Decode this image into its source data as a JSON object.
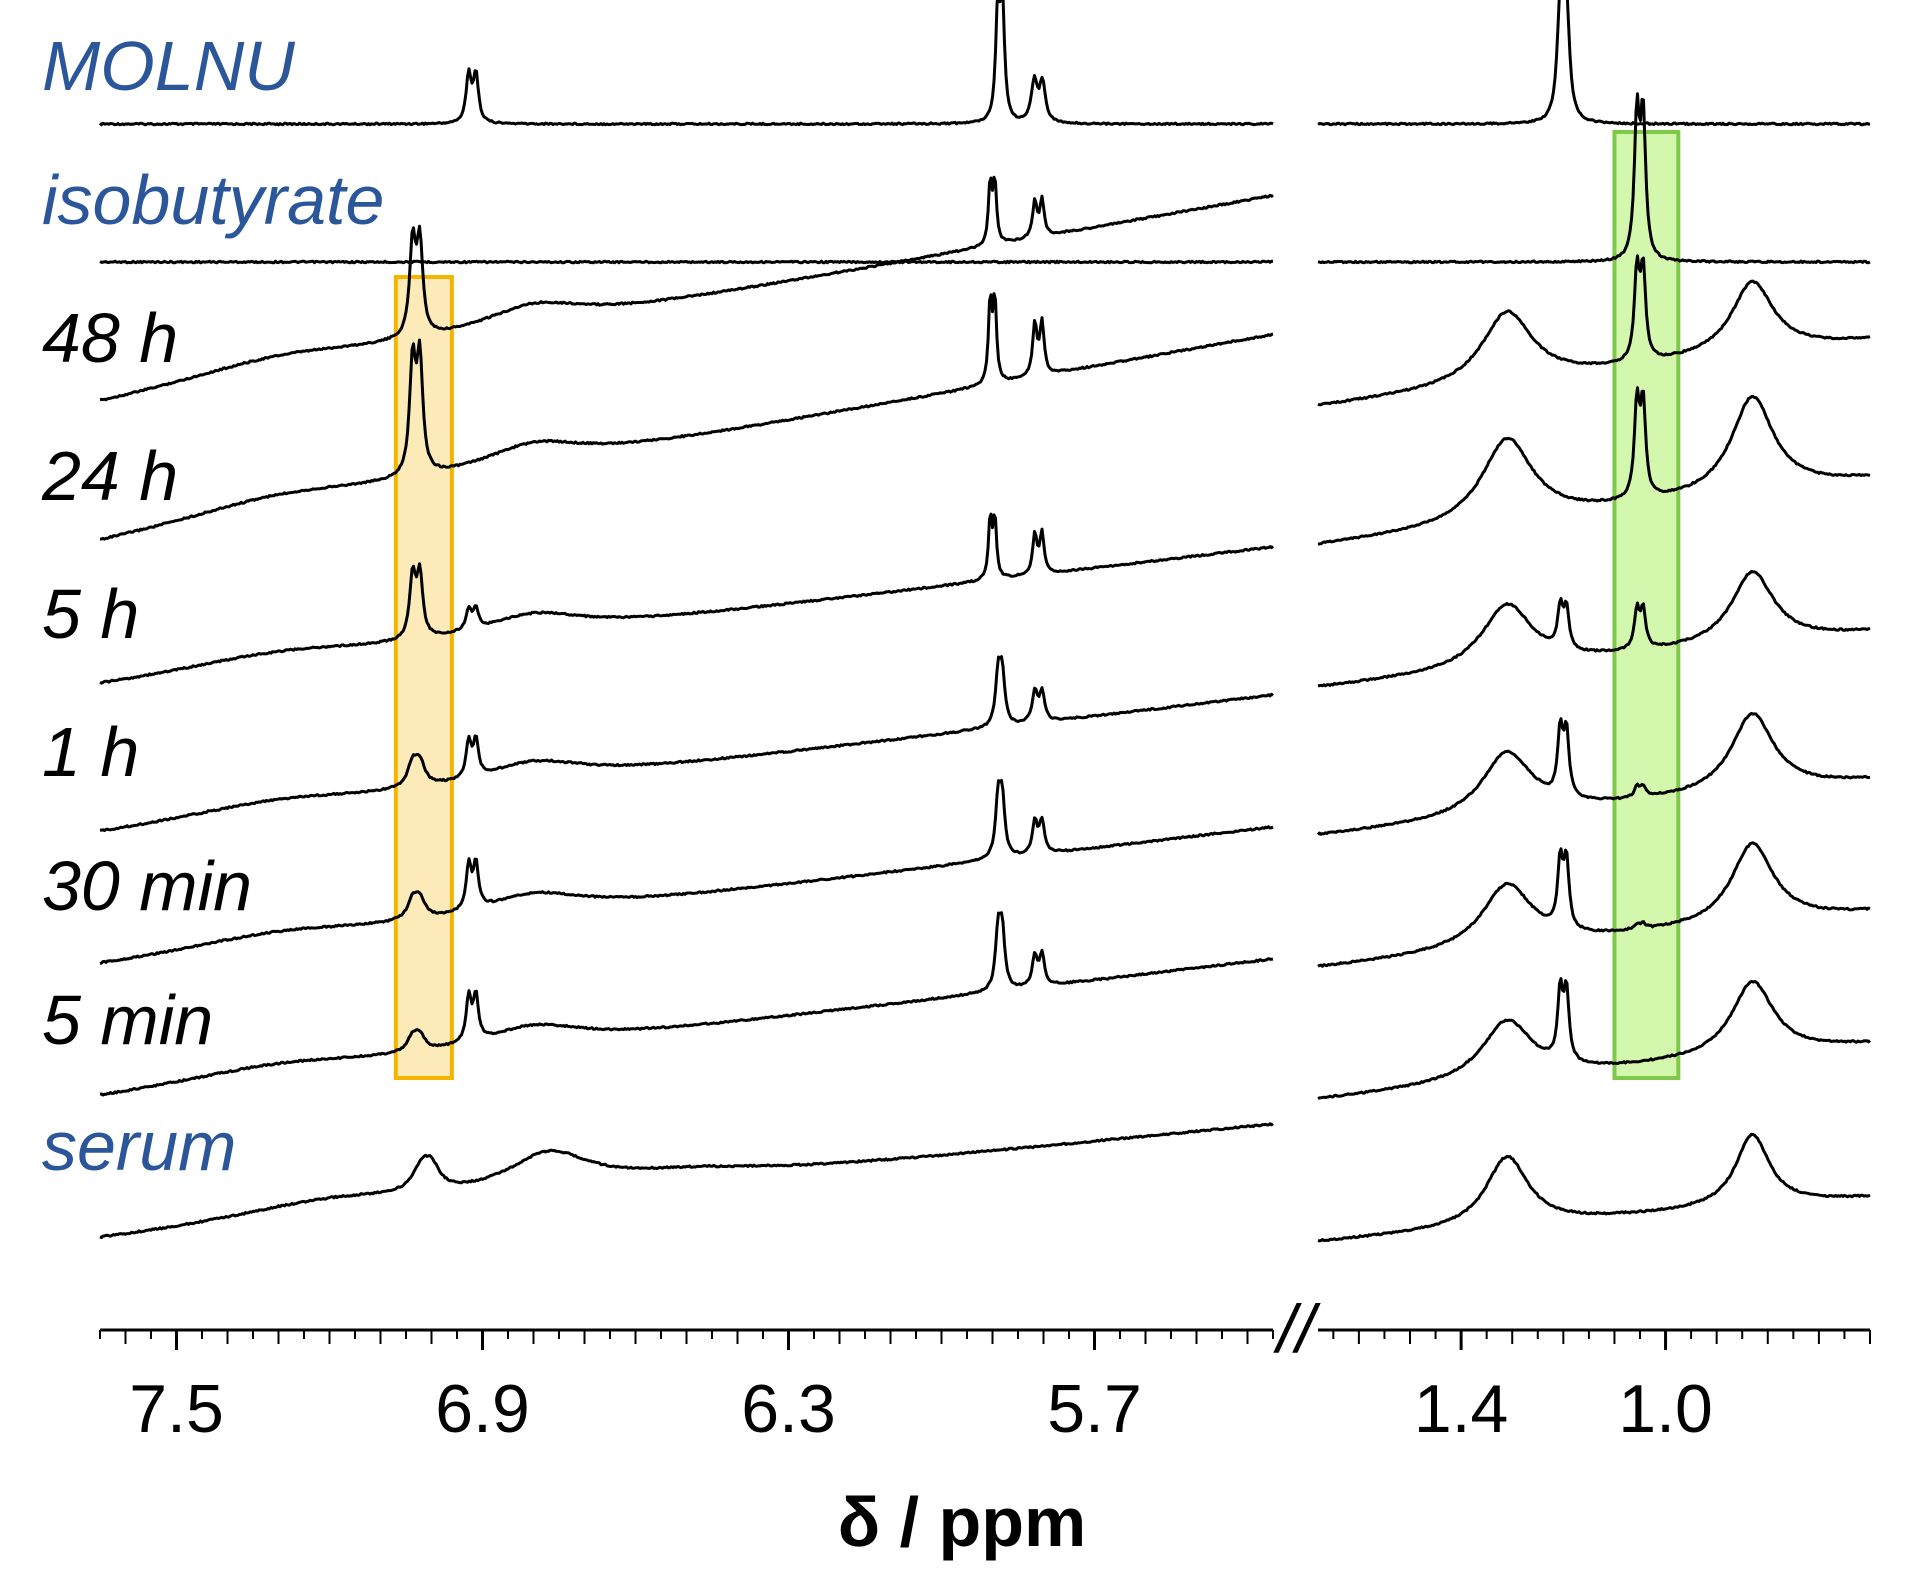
{
  "chart_data": {
    "type": "line",
    "title": "",
    "xlabel": "δ / ppm",
    "ylabel": "",
    "grid": false,
    "axis_break": "//",
    "panels": [
      {
        "name": "left",
        "xlim": [
          7.65,
          5.35
        ],
        "ticks": [
          7.5,
          6.9,
          6.3,
          5.7
        ],
        "tick_labels": [
          "7.5",
          "6.9",
          "6.3",
          "5.7"
        ]
      },
      {
        "name": "right",
        "xlim": [
          1.68,
          0.6
        ],
        "ticks": [
          1.4,
          1.0
        ],
        "tick_labels": [
          "1.4",
          "1.0"
        ]
      }
    ],
    "highlights": [
      {
        "name": "molnupiravir-region",
        "panel": "left",
        "ppm_range": [
          7.07,
          6.96
        ],
        "color": "#f5b400",
        "fill": "#fbe6a6",
        "traces": [
          "48 h",
          "5 min"
        ]
      },
      {
        "name": "isobutyrate-region",
        "panel": "right",
        "ppm_range": [
          1.1,
          0.975
        ],
        "color": "#7fc94a",
        "fill": "#c9f59a",
        "traces": [
          "isobutyrate",
          "5 min"
        ]
      }
    ],
    "series": [
      {
        "name": "MOLNU",
        "label_color": "#2b579a",
        "left": {
          "baseline": 0,
          "slope": 0,
          "peaks": [
            {
              "type": "doublet",
              "ppm": 6.92,
              "sep": 0.014,
              "h": 48,
              "w": 0.006
            },
            {
              "type": "doublet",
              "ppm": 5.885,
              "sep": 0.009,
              "h": 110,
              "w": 0.005
            },
            {
              "type": "doublet",
              "ppm": 5.81,
              "sep": 0.016,
              "h": 40,
              "w": 0.007
            }
          ]
        },
        "right": {
          "baseline": 0,
          "slope": 0,
          "peaks": [
            {
              "type": "doublet",
              "ppm": 1.2,
              "sep": 0.012,
              "h": 112,
              "w": 0.007
            }
          ]
        }
      },
      {
        "name": "isobutyrate",
        "label_color": "#2b579a",
        "left": {
          "baseline": 0,
          "slope": 0,
          "peaks": []
        },
        "right": {
          "baseline": 0,
          "slope": 0,
          "peaks": [
            {
              "type": "doublet",
              "ppm": 1.05,
              "sep": 0.012,
              "h": 140,
              "w": 0.006
            }
          ]
        }
      },
      {
        "name": "48 h",
        "label_color": "#000000",
        "left": {
          "baseline": 0,
          "slope": -0.18,
          "peaks": [
            {
              "type": "broad",
              "ppm": 7.3,
              "h": 18,
              "w": 0.25
            },
            {
              "type": "doublet",
              "ppm": 7.03,
              "sep": 0.014,
              "h": 92,
              "w": 0.007
            },
            {
              "type": "broad",
              "ppm": 6.8,
              "h": 22,
              "w": 0.12
            },
            {
              "type": "doublet",
              "ppm": 5.9,
              "sep": 0.009,
              "h": 62,
              "w": 0.004
            },
            {
              "type": "doublet",
              "ppm": 5.81,
              "sep": 0.014,
              "h": 36,
              "w": 0.005
            }
          ]
        },
        "right": {
          "baseline": 0,
          "slope": -0.12,
          "peaks": [
            {
              "type": "broad",
              "ppm": 1.31,
              "h": 72,
              "w": 0.06
            },
            {
              "type": "doublet",
              "ppm": 1.05,
              "sep": 0.012,
              "h": 88,
              "w": 0.006
            },
            {
              "type": "broad",
              "ppm": 0.83,
              "h": 72,
              "w": 0.05
            }
          ]
        }
      },
      {
        "name": "24 h",
        "label_color": "#000000",
        "left": {
          "baseline": 0,
          "slope": -0.18,
          "peaks": [
            {
              "type": "broad",
              "ppm": 7.3,
              "h": 18,
              "w": 0.25
            },
            {
              "type": "doublet",
              "ppm": 7.03,
              "sep": 0.014,
              "h": 112,
              "w": 0.007
            },
            {
              "type": "broad",
              "ppm": 6.8,
              "h": 22,
              "w": 0.12
            },
            {
              "type": "doublet",
              "ppm": 5.9,
              "sep": 0.009,
              "h": 82,
              "w": 0.004
            },
            {
              "type": "doublet",
              "ppm": 5.81,
              "sep": 0.014,
              "h": 52,
              "w": 0.005
            }
          ]
        },
        "right": {
          "baseline": 0,
          "slope": -0.12,
          "peaks": [
            {
              "type": "broad",
              "ppm": 1.31,
              "h": 84,
              "w": 0.06
            },
            {
              "type": "doublet",
              "ppm": 1.05,
              "sep": 0.012,
              "h": 92,
              "w": 0.006
            },
            {
              "type": "broad",
              "ppm": 0.83,
              "h": 96,
              "w": 0.05
            }
          ]
        }
      },
      {
        "name": "5 h",
        "label_color": "#000000",
        "left": {
          "baseline": 0,
          "slope": -0.12,
          "peaks": [
            {
              "type": "broad",
              "ppm": 7.3,
              "h": 14,
              "w": 0.25
            },
            {
              "type": "doublet",
              "ppm": 7.03,
              "sep": 0.014,
              "h": 62,
              "w": 0.007
            },
            {
              "type": "doublet",
              "ppm": 6.92,
              "sep": 0.014,
              "h": 20,
              "w": 0.006
            },
            {
              "type": "broad",
              "ppm": 6.8,
              "h": 20,
              "w": 0.12
            },
            {
              "type": "doublet",
              "ppm": 5.9,
              "sep": 0.009,
              "h": 60,
              "w": 0.004
            },
            {
              "type": "doublet",
              "ppm": 5.81,
              "sep": 0.014,
              "h": 40,
              "w": 0.005
            }
          ]
        },
        "right": {
          "baseline": 0,
          "slope": -0.1,
          "peaks": [
            {
              "type": "broad",
              "ppm": 1.31,
              "h": 64,
              "w": 0.06
            },
            {
              "type": "doublet",
              "ppm": 1.2,
              "sep": 0.012,
              "h": 40,
              "w": 0.006
            },
            {
              "type": "doublet",
              "ppm": 1.05,
              "sep": 0.012,
              "h": 38,
              "w": 0.006
            },
            {
              "type": "broad",
              "ppm": 0.83,
              "h": 72,
              "w": 0.05
            }
          ]
        }
      },
      {
        "name": "1 h",
        "label_color": "#000000",
        "left": {
          "baseline": 0,
          "slope": -0.12,
          "peaks": [
            {
              "type": "broad",
              "ppm": 7.3,
              "h": 14,
              "w": 0.25
            },
            {
              "type": "doublet",
              "ppm": 7.03,
              "sep": 0.014,
              "h": 22,
              "w": 0.012
            },
            {
              "type": "doublet",
              "ppm": 6.92,
              "sep": 0.014,
              "h": 36,
              "w": 0.006
            },
            {
              "type": "broad",
              "ppm": 6.8,
              "h": 20,
              "w": 0.12
            },
            {
              "type": "doublet",
              "ppm": 5.885,
              "sep": 0.008,
              "h": 50,
              "w": 0.006
            },
            {
              "type": "doublet",
              "ppm": 5.81,
              "sep": 0.014,
              "h": 30,
              "w": 0.006
            }
          ]
        },
        "right": {
          "baseline": 0,
          "slope": -0.1,
          "peaks": [
            {
              "type": "broad",
              "ppm": 1.31,
              "h": 64,
              "w": 0.06
            },
            {
              "type": "doublet",
              "ppm": 1.2,
              "sep": 0.012,
              "h": 64,
              "w": 0.006
            },
            {
              "type": "doublet",
              "ppm": 1.05,
              "sep": 0.012,
              "h": 10,
              "w": 0.006
            },
            {
              "type": "broad",
              "ppm": 0.83,
              "h": 78,
              "w": 0.05
            }
          ]
        }
      },
      {
        "name": "30 min",
        "label_color": "#000000",
        "left": {
          "baseline": 0,
          "slope": -0.12,
          "peaks": [
            {
              "type": "broad",
              "ppm": 7.3,
              "h": 14,
              "w": 0.25
            },
            {
              "type": "doublet",
              "ppm": 7.03,
              "sep": 0.014,
              "h": 18,
              "w": 0.012
            },
            {
              "type": "doublet",
              "ppm": 6.92,
              "sep": 0.014,
              "h": 44,
              "w": 0.006
            },
            {
              "type": "broad",
              "ppm": 6.8,
              "h": 20,
              "w": 0.12
            },
            {
              "type": "doublet",
              "ppm": 5.885,
              "sep": 0.008,
              "h": 56,
              "w": 0.006
            },
            {
              "type": "doublet",
              "ppm": 5.81,
              "sep": 0.014,
              "h": 32,
              "w": 0.006
            }
          ]
        },
        "right": {
          "baseline": 0,
          "slope": -0.1,
          "peaks": [
            {
              "type": "broad",
              "ppm": 1.31,
              "h": 64,
              "w": 0.06
            },
            {
              "type": "doublet",
              "ppm": 1.2,
              "sep": 0.012,
              "h": 66,
              "w": 0.006
            },
            {
              "type": "doublet",
              "ppm": 1.05,
              "sep": 0.012,
              "h": 5,
              "w": 0.006
            },
            {
              "type": "broad",
              "ppm": 0.83,
              "h": 80,
              "w": 0.05
            }
          ]
        }
      },
      {
        "name": "5 min",
        "label_color": "#000000",
        "left": {
          "baseline": 0,
          "slope": -0.12,
          "peaks": [
            {
              "type": "broad",
              "ppm": 7.3,
              "h": 14,
              "w": 0.25
            },
            {
              "type": "doublet",
              "ppm": 7.03,
              "sep": 0.014,
              "h": 14,
              "w": 0.012
            },
            {
              "type": "doublet",
              "ppm": 6.92,
              "sep": 0.014,
              "h": 44,
              "w": 0.006
            },
            {
              "type": "broad",
              "ppm": 6.8,
              "h": 20,
              "w": 0.12
            },
            {
              "type": "doublet",
              "ppm": 5.885,
              "sep": 0.008,
              "h": 56,
              "w": 0.006
            },
            {
              "type": "doublet",
              "ppm": 5.81,
              "sep": 0.014,
              "h": 30,
              "w": 0.006
            }
          ]
        },
        "right": {
          "baseline": 0,
          "slope": -0.1,
          "peaks": [
            {
              "type": "broad",
              "ppm": 1.31,
              "h": 60,
              "w": 0.06
            },
            {
              "type": "doublet",
              "ppm": 1.2,
              "sep": 0.012,
              "h": 68,
              "w": 0.006
            },
            {
              "type": "broad",
              "ppm": 0.83,
              "h": 74,
              "w": 0.05
            }
          ]
        }
      },
      {
        "name": "serum",
        "label_color": "#2b579a",
        "left": {
          "baseline": 0,
          "slope": -0.1,
          "peaks": [
            {
              "type": "broad",
              "ppm": 7.2,
              "h": 18,
              "w": 0.25
            },
            {
              "type": "doublet",
              "ppm": 7.01,
              "sep": 0.02,
              "h": 22,
              "w": 0.02
            },
            {
              "type": "broad",
              "ppm": 6.77,
              "h": 38,
              "w": 0.1
            },
            {
              "type": "broad",
              "ppm": 6.5,
              "h": 10,
              "w": 0.2
            }
          ]
        },
        "right": {
          "baseline": 0,
          "slope": -0.08,
          "peaks": [
            {
              "type": "broad",
              "ppm": 1.31,
              "h": 70,
              "w": 0.05
            },
            {
              "type": "broad",
              "ppm": 0.83,
              "h": 72,
              "w": 0.04
            }
          ]
        }
      }
    ]
  }
}
